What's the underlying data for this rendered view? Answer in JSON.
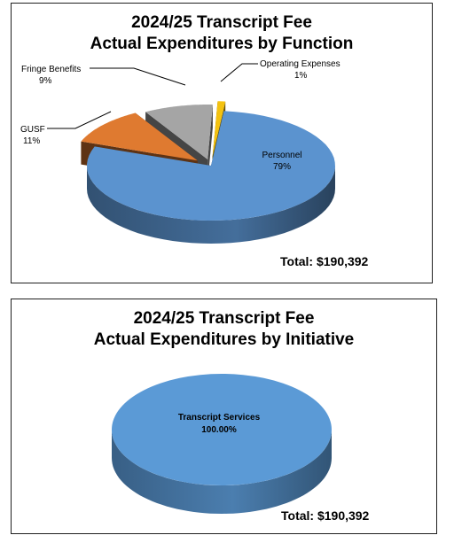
{
  "chart_data": [
    {
      "type": "pie",
      "title_line1": "2024/25 Transcript Fee",
      "title_line2": "Actual Expenditures by Function",
      "slices": [
        {
          "name": "Personnel",
          "value_label": "79%",
          "value": 79,
          "color": "#5b93cf"
        },
        {
          "name": "GUSF",
          "value_label": "11%",
          "value": 11,
          "color": "#df7a30"
        },
        {
          "name": "Fringe Benefits",
          "value_label": "9%",
          "value": 9,
          "color": "#a5a5a5"
        },
        {
          "name": "Operating Expenses",
          "value_label": "1%",
          "value": 1,
          "color": "#f4c20f"
        }
      ],
      "total": "Total:  $190,392"
    },
    {
      "type": "pie",
      "title_line1": "2024/25 Transcript Fee",
      "title_line2": "Actual Expenditures by Initiative",
      "slices": [
        {
          "name": "Transcript Services",
          "value_label": "100.00%",
          "value": 100,
          "color": "#5b9ad6"
        }
      ],
      "total": "Total:  $190,392"
    }
  ]
}
